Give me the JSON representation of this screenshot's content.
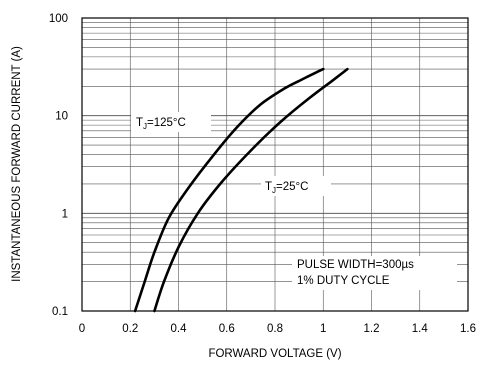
{
  "chart_data": {
    "type": "line",
    "xlabel": "FORWARD VOLTAGE (V)",
    "ylabel": "INSTANTANEOUS FORWARD CURRENT (A)",
    "xlim": [
      0,
      1.6
    ],
    "ylim": [
      0.1,
      100
    ],
    "y_scale": "log",
    "grid": "on",
    "x_ticks": [
      "0",
      "0.2",
      "0.4",
      "0.6",
      "0.8",
      "1",
      "1.2",
      "1.4",
      "1.6"
    ],
    "y_ticks": [
      "0.1",
      "1",
      "10",
      "100"
    ],
    "series": [
      {
        "name": "TJ=125°C",
        "label_main": "T",
        "label_sub": "J",
        "label_rest": "=125°C",
        "color": "#000000",
        "x": [
          0.22,
          0.26,
          0.3,
          0.36,
          0.44,
          0.54,
          0.64,
          0.74,
          0.84,
          0.92,
          1.0
        ],
        "y": [
          0.1,
          0.2,
          0.4,
          0.9,
          1.8,
          3.8,
          7.5,
          13.0,
          19.0,
          24.0,
          30.0
        ]
      },
      {
        "name": "TJ=25°C",
        "label_main": "T",
        "label_sub": "J",
        "label_rest": "=25°C",
        "color": "#000000",
        "x": [
          0.3,
          0.34,
          0.4,
          0.48,
          0.58,
          0.7,
          0.82,
          0.94,
          1.04,
          1.1
        ],
        "y": [
          0.1,
          0.2,
          0.45,
          1.0,
          2.1,
          4.4,
          8.5,
          15.0,
          23.0,
          30.0
        ]
      }
    ],
    "annotations": [
      "PULSE WIDTH=300µs",
      "1% DUTY CYCLE"
    ]
  }
}
